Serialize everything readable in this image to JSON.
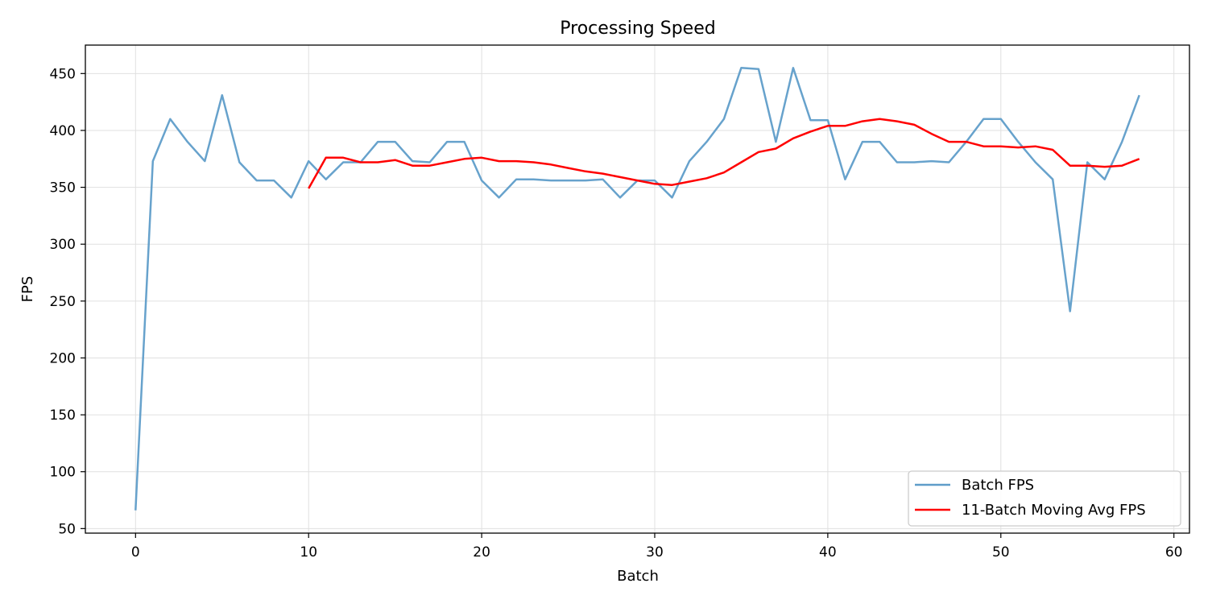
{
  "chart_data": {
    "type": "line",
    "title": "Processing Speed",
    "xlabel": "Batch",
    "ylabel": "FPS",
    "xlim": [
      -2.9,
      60.9
    ],
    "ylim": [
      46,
      475
    ],
    "xticks": [
      0,
      10,
      20,
      30,
      40,
      50,
      60
    ],
    "yticks": [
      50,
      100,
      150,
      200,
      250,
      300,
      350,
      400,
      450
    ],
    "grid": true,
    "legend_position": "lower-right",
    "series": [
      {
        "name": "Batch FPS",
        "color": "#5f9dc9",
        "x": [
          0,
          1,
          2,
          3,
          4,
          5,
          6,
          7,
          8,
          9,
          10,
          11,
          12,
          13,
          14,
          15,
          16,
          17,
          18,
          19,
          20,
          21,
          22,
          23,
          24,
          25,
          26,
          27,
          28,
          29,
          30,
          31,
          32,
          33,
          34,
          35,
          36,
          37,
          38,
          39,
          40,
          41,
          42,
          43,
          44,
          45,
          46,
          47,
          48,
          49,
          50,
          51,
          52,
          53,
          54,
          55,
          56,
          57,
          58
        ],
        "y": [
          66,
          373,
          410,
          390,
          373,
          431,
          372,
          356,
          356,
          341,
          373,
          357,
          372,
          372,
          390,
          390,
          373,
          372,
          390,
          390,
          356,
          341,
          357,
          357,
          356,
          356,
          356,
          357,
          341,
          356,
          356,
          341,
          373,
          390,
          410,
          455,
          454,
          390,
          455,
          409,
          409,
          357,
          390,
          390,
          372,
          372,
          373,
          372,
          390,
          410,
          410,
          390,
          372,
          357,
          241,
          372,
          357,
          390,
          431
        ]
      },
      {
        "name": "11-Batch Moving Avg FPS",
        "color": "#ff0000",
        "x": [
          10,
          11,
          12,
          13,
          14,
          15,
          16,
          17,
          18,
          19,
          20,
          21,
          22,
          23,
          24,
          25,
          26,
          27,
          28,
          29,
          30,
          31,
          32,
          33,
          34,
          35,
          36,
          37,
          38,
          39,
          40,
          41,
          42,
          43,
          44,
          45,
          46,
          47,
          48,
          49,
          50,
          51,
          52,
          53,
          54,
          55,
          56,
          57,
          58
        ],
        "y": [
          349,
          376,
          376,
          372,
          372,
          374,
          369,
          369,
          372,
          375,
          376,
          373,
          373,
          372,
          370,
          367,
          364,
          362,
          359,
          356,
          353,
          352,
          355,
          358,
          363,
          372,
          381,
          384,
          393,
          399,
          404,
          404,
          408,
          410,
          408,
          405,
          397,
          390,
          390,
          386,
          386,
          385,
          386,
          383,
          369,
          369,
          368,
          369,
          375
        ]
      }
    ]
  }
}
